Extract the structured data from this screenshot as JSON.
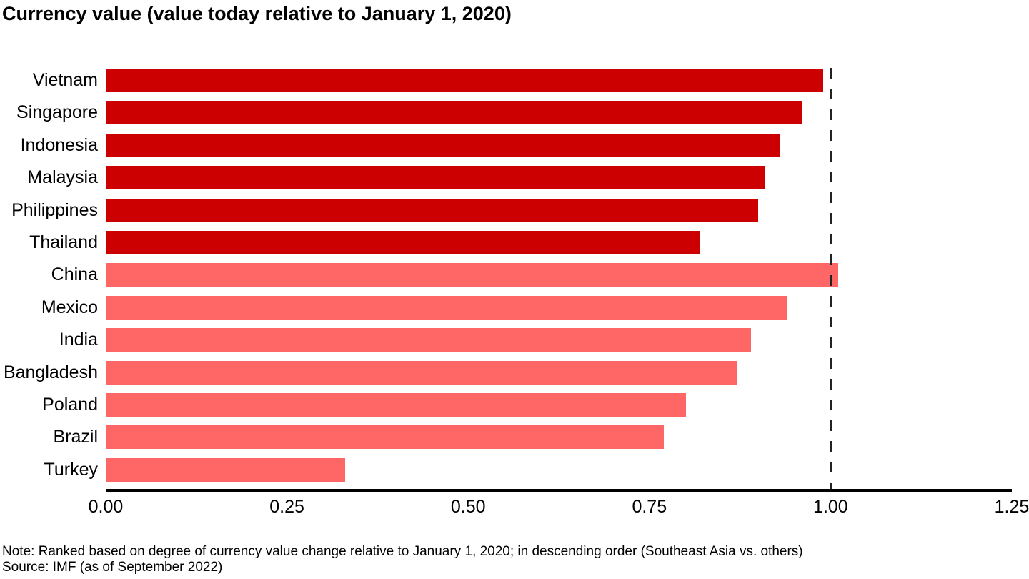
{
  "header": {
    "title": "Currency value (value today relative to January 1, 2020)"
  },
  "footer": {
    "note": "Note: Ranked based on degree of currency value change relative to January 1, 2020; in descending order (Southeast Asia vs. others)",
    "source": "Source: IMF (as of September 2022)"
  },
  "colors": {
    "southeast_asia_bar": "#CC0000",
    "other_bar": "#FF6666",
    "reference_line": "#222222",
    "axis_line": "#000000"
  },
  "chart_data": {
    "type": "bar",
    "orientation": "horizontal",
    "title": "Currency value (value today relative to January 1, 2020)",
    "xlabel": "",
    "ylabel": "",
    "xlim": [
      0,
      1.25
    ],
    "xticks": [
      0,
      0.25,
      0.5,
      0.75,
      1.0,
      1.25
    ],
    "xtick_labels": [
      "0.00",
      "0.25",
      "0.50",
      "0.75",
      "1.00",
      "1.25"
    ],
    "reference_line_x": 1.0,
    "grid": false,
    "legend": false,
    "categories": [
      "Vietnam",
      "Singapore",
      "Indonesia",
      "Malaysia",
      "Philippines",
      "Thailand",
      "China",
      "Mexico",
      "India",
      "Bangladesh",
      "Poland",
      "Brazil",
      "Turkey"
    ],
    "values": [
      0.99,
      0.96,
      0.93,
      0.91,
      0.9,
      0.82,
      1.01,
      0.94,
      0.89,
      0.87,
      0.8,
      0.77,
      0.33
    ],
    "groups": [
      "southeast_asia",
      "southeast_asia",
      "southeast_asia",
      "southeast_asia",
      "southeast_asia",
      "southeast_asia",
      "other",
      "other",
      "other",
      "other",
      "other",
      "other",
      "other"
    ],
    "series": [
      {
        "name": "Southeast Asia",
        "color": "#CC0000",
        "points": [
          {
            "category": "Vietnam",
            "value": 0.99
          },
          {
            "category": "Singapore",
            "value": 0.96
          },
          {
            "category": "Indonesia",
            "value": 0.93
          },
          {
            "category": "Malaysia",
            "value": 0.91
          },
          {
            "category": "Philippines",
            "value": 0.9
          },
          {
            "category": "Thailand",
            "value": 0.82
          }
        ]
      },
      {
        "name": "Others",
        "color": "#FF6666",
        "points": [
          {
            "category": "China",
            "value": 1.01
          },
          {
            "category": "Mexico",
            "value": 0.94
          },
          {
            "category": "India",
            "value": 0.89
          },
          {
            "category": "Bangladesh",
            "value": 0.87
          },
          {
            "category": "Poland",
            "value": 0.8
          },
          {
            "category": "Brazil",
            "value": 0.77
          },
          {
            "category": "Turkey",
            "value": 0.33
          }
        ]
      }
    ]
  }
}
